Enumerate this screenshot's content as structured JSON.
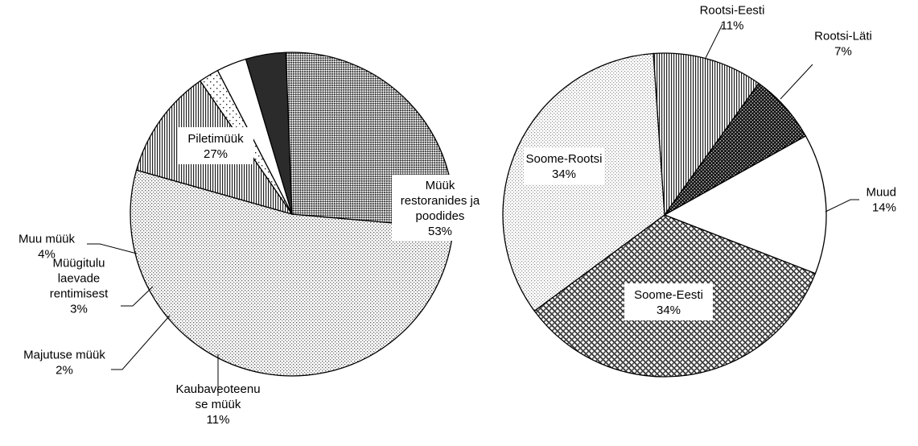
{
  "chart_data": [
    {
      "type": "pie",
      "title": "",
      "slices": [
        {
          "label": "Müük restoranides ja poodides",
          "value": 53,
          "value_label": "53%",
          "pattern": "dots"
        },
        {
          "label": "Kaubaveoteenuse müük",
          "value": 11,
          "value_label": "11%",
          "pattern": "vertical-stripes"
        },
        {
          "label": "Majutuse müük",
          "value": 2,
          "value_label": "2%",
          "pattern": "sparse-dots"
        },
        {
          "label": "Müügitulu laevade rentimisest",
          "value": 3,
          "value_label": "3%",
          "pattern": "white"
        },
        {
          "label": "Muu müük",
          "value": 4,
          "value_label": "4%",
          "pattern": "solid-dark"
        },
        {
          "label": "Piletimüük",
          "value": 27,
          "value_label": "27%",
          "pattern": "checker"
        }
      ],
      "printed_labels": [
        [
          "Müük",
          "restoranides ja",
          "poodides",
          "53%"
        ],
        [
          "Kaubaveoteenu",
          "se müük",
          "11%"
        ],
        [
          "Majutuse müük",
          "2%"
        ],
        [
          "Müügitulu",
          "laevade",
          "rentimisest",
          "3%"
        ],
        [
          "Muu müük",
          "4%"
        ],
        [
          "Piletimüük",
          "27%"
        ]
      ]
    },
    {
      "type": "pie",
      "title": "",
      "slices": [
        {
          "label": "Rootsi-Eesti",
          "value": 11,
          "value_label": "11%",
          "pattern": "vertical-stripes"
        },
        {
          "label": "Rootsi-Läti",
          "value": 7,
          "value_label": "7%",
          "pattern": "dark-checker"
        },
        {
          "label": "Muud",
          "value": 14,
          "value_label": "14%",
          "pattern": "white"
        },
        {
          "label": "Soome-Eesti",
          "value": 34,
          "value_label": "34%",
          "pattern": "diagonal-weave"
        },
        {
          "label": "Soome-Rootsi",
          "value": 34,
          "value_label": "34%",
          "pattern": "light-dots"
        }
      ],
      "printed_labels": [
        [
          "Rootsi-Eesti",
          "11%"
        ],
        [
          "Rootsi-Läti",
          "7%"
        ],
        [
          "Muud",
          "14%"
        ],
        [
          "Soome-Eesti",
          "34%"
        ],
        [
          "Soome-Rootsi",
          "34%"
        ]
      ]
    }
  ]
}
